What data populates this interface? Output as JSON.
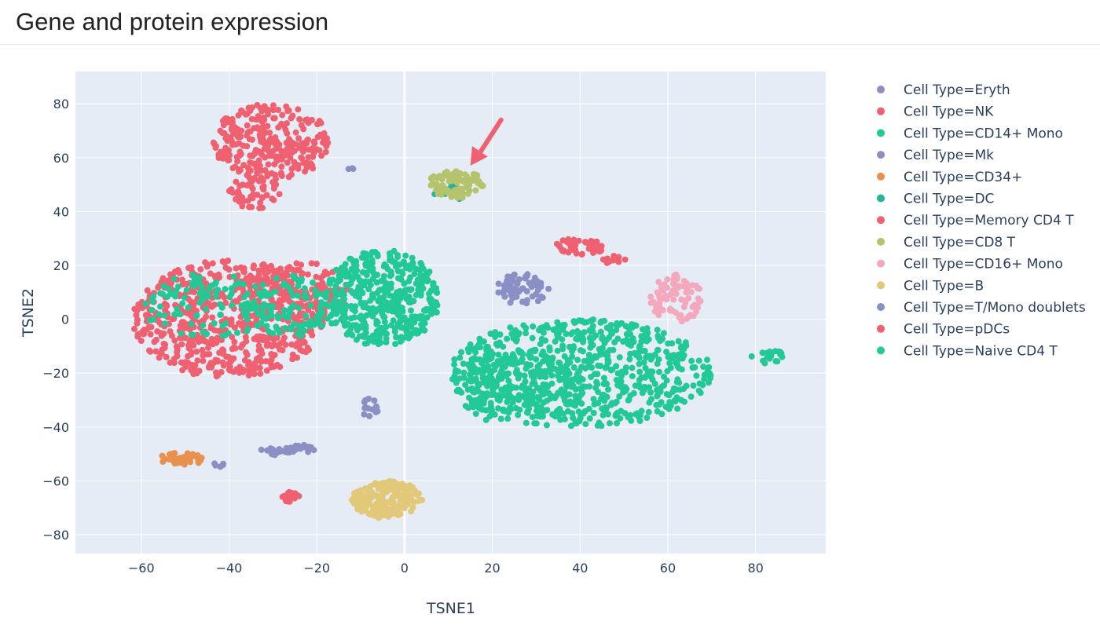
{
  "page": {
    "title": "Gene and protein expression"
  },
  "colors": {
    "plot_bg": "#e5ecf6",
    "grid": "#ffffff",
    "text": "#2a3f5f",
    "arrow": "#ef6070"
  },
  "chart_data": {
    "type": "scatter",
    "title": "",
    "xlabel": "TSNE1",
    "ylabel": "TSNE2",
    "xlim": [
      -75,
      96
    ],
    "ylim": [
      -87,
      92
    ],
    "xticks": [
      -60,
      -40,
      -20,
      0,
      20,
      40,
      60,
      80
    ],
    "yticks": [
      -80,
      -60,
      -40,
      -20,
      0,
      20,
      40,
      60,
      80
    ],
    "xtick_labels": [
      "−60",
      "−40",
      "−20",
      "0",
      "20",
      "40",
      "60",
      "80"
    ],
    "ytick_labels": [
      "−80",
      "−60",
      "−40",
      "−20",
      "0",
      "20",
      "40",
      "60",
      "80"
    ],
    "grid": true,
    "zeroline": true,
    "legend_position": "right",
    "annotation": {
      "type": "arrow",
      "points_to": [
        15,
        57
      ],
      "from": [
        22,
        74
      ]
    },
    "series": [
      {
        "name": "Cell Type=Eryth",
        "color": "#8a8fc4",
        "clusters": [
          {
            "cx": -12,
            "cy": 56,
            "rx": 1,
            "ry": 1,
            "n": 3
          }
        ]
      },
      {
        "name": "Cell Type=NK",
        "color": "#ef6070",
        "clusters": [
          {
            "cx": -30,
            "cy": 66,
            "rx": 14,
            "ry": 14,
            "n": 280
          },
          {
            "cx": -34,
            "cy": 47,
            "rx": 6,
            "ry": 6,
            "n": 50
          },
          {
            "cx": 40,
            "cy": 27,
            "rx": 6,
            "ry": 3,
            "n": 45
          },
          {
            "cx": 48,
            "cy": 22,
            "rx": 3,
            "ry": 1.5,
            "n": 12
          }
        ]
      },
      {
        "name": "Cell Type=CD14+ Mono",
        "color": "#22c996",
        "clusters": [
          {
            "cx": 40,
            "cy": -20,
            "rx": 30,
            "ry": 20,
            "n": 700
          },
          {
            "cx": 25,
            "cy": -25,
            "rx": 14,
            "ry": 14,
            "n": 150
          },
          {
            "cx": 83,
            "cy": -14,
            "rx": 4,
            "ry": 3,
            "n": 18
          }
        ]
      },
      {
        "name": "Cell Type=Mk",
        "color": "#8a8fc4",
        "clusters": [
          {
            "cx": 27,
            "cy": 11,
            "rx": 6,
            "ry": 6,
            "n": 60
          },
          {
            "cx": -8,
            "cy": -33,
            "rx": 2,
            "ry": 4,
            "n": 15
          }
        ]
      },
      {
        "name": "Cell Type=CD34+",
        "color": "#e8914f",
        "clusters": [
          {
            "cx": -51,
            "cy": -52,
            "rx": 5,
            "ry": 2.5,
            "n": 45
          }
        ]
      },
      {
        "name": "Cell Type=DC",
        "color": "#22b59a",
        "clusters": [
          {
            "cx": 10,
            "cy": 47,
            "rx": 4,
            "ry": 3,
            "n": 10
          }
        ]
      },
      {
        "name": "Cell Type=Memory CD4 T",
        "color": "#ef6070",
        "clusters": [
          {
            "cx": -40,
            "cy": 0,
            "rx": 22,
            "ry": 22,
            "n": 600
          },
          {
            "cx": -24,
            "cy": 10,
            "rx": 12,
            "ry": 12,
            "n": 150
          }
        ]
      },
      {
        "name": "Cell Type=CD8 T",
        "color": "#b5c46c",
        "clusters": [
          {
            "cx": 12,
            "cy": 50,
            "rx": 7,
            "ry": 5,
            "n": 80
          }
        ]
      },
      {
        "name": "Cell Type=CD16+ Mono",
        "color": "#f4a8bd",
        "clusters": [
          {
            "cx": 62,
            "cy": 8,
            "rx": 6,
            "ry": 9,
            "n": 80
          }
        ]
      },
      {
        "name": "Cell Type=B",
        "color": "#e2c979",
        "clusters": [
          {
            "cx": -4,
            "cy": -67,
            "rx": 8,
            "ry": 7,
            "n": 220
          }
        ]
      },
      {
        "name": "Cell Type=T/Mono doublets",
        "color": "#8a8fc4",
        "clusters": [
          {
            "cx": -29,
            "cy": -49,
            "rx": 4,
            "ry": 1.5,
            "n": 25
          },
          {
            "cx": -23,
            "cy": -48,
            "rx": 3,
            "ry": 1.5,
            "n": 15
          },
          {
            "cx": -42,
            "cy": -54,
            "rx": 1.5,
            "ry": 1,
            "n": 6
          }
        ]
      },
      {
        "name": "Cell Type=pDCs",
        "color": "#ef6070",
        "clusters": [
          {
            "cx": -26,
            "cy": -66,
            "rx": 2,
            "ry": 2,
            "n": 20
          }
        ]
      },
      {
        "name": "Cell Type=Naive CD4 T",
        "color": "#22c996",
        "clusters": [
          {
            "cx": -5,
            "cy": 8,
            "rx": 13,
            "ry": 18,
            "n": 420
          },
          {
            "cx": -25,
            "cy": 5,
            "rx": 12,
            "ry": 12,
            "n": 120
          },
          {
            "cx": -45,
            "cy": 5,
            "rx": 15,
            "ry": 12,
            "n": 100
          }
        ]
      }
    ]
  }
}
